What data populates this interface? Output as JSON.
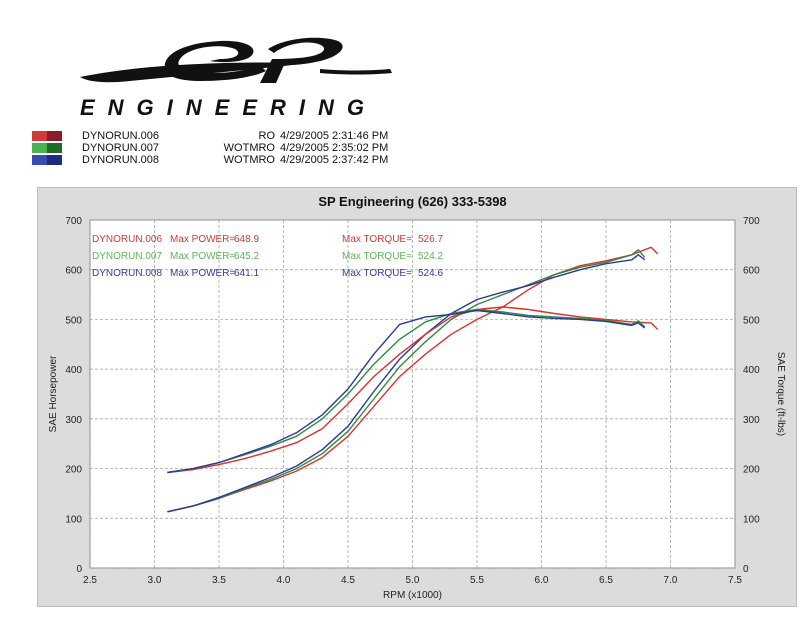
{
  "brand": {
    "initials": "SP",
    "name": "ENGINEERING"
  },
  "runs": [
    {
      "name": "DYNORUN.006",
      "mode": "RO",
      "date": "4/29/2005 2:31:46 PM",
      "color": "#d23a3a"
    },
    {
      "name": "DYNORUN.007",
      "mode": "WOTMRO",
      "date": "4/29/2005 2:35:02 PM",
      "color": "#2e8b3a"
    },
    {
      "name": "DYNORUN.008",
      "mode": "WOTMRO",
      "date": "4/29/2005 2:37:42 PM",
      "color": "#2a3a9c"
    }
  ],
  "chart_data": {
    "type": "line",
    "title": "SP Engineering (626) 333-5398",
    "xlabel": "RPM (x1000)",
    "ylabel": "SAE Horsepower",
    "y2label": "SAE Torque (ft-lbs)",
    "xlim": [
      2.5,
      7.5
    ],
    "ylim": [
      0,
      700
    ],
    "y2lim": [
      0,
      700
    ],
    "xticks": [
      "2.5",
      "3.0",
      "3.5",
      "4.0",
      "4.5",
      "5.0",
      "5.5",
      "6.0",
      "6.5",
      "7.0",
      "7.5"
    ],
    "yticks": [
      "0",
      "100",
      "200",
      "300",
      "400",
      "500",
      "600",
      "700"
    ],
    "grid": true,
    "annotations": [
      {
        "run": "DYNORUN.006",
        "power_label": "Max POWER=",
        "power": "648.9",
        "torque_label": "Max TORQUE=",
        "torque": "526.7",
        "color": "#d23a3a"
      },
      {
        "run": "DYNORUN.007",
        "power_label": "Max POWER=",
        "power": "645.2",
        "torque_label": "Max TORQUE=",
        "torque": "524.2",
        "color": "#5cb85c"
      },
      {
        "run": "DYNORUN.008",
        "power_label": "Max POWER=",
        "power": "641.1",
        "torque_label": "Max TORQUE=",
        "torque": "524.6",
        "color": "#3a3aa0"
      }
    ],
    "series": [
      {
        "run": "DYNORUN.006",
        "kind": "power",
        "color": "#e03030",
        "x": [
          3.1,
          3.3,
          3.5,
          3.7,
          3.9,
          4.1,
          4.3,
          4.5,
          4.7,
          4.9,
          5.1,
          5.3,
          5.5,
          5.7,
          5.9,
          6.1,
          6.3,
          6.5,
          6.7,
          6.85,
          6.9
        ],
        "y": [
          113,
          125,
          140,
          158,
          175,
          195,
          222,
          265,
          325,
          385,
          430,
          470,
          500,
          525,
          560,
          590,
          608,
          618,
          630,
          645,
          632
        ]
      },
      {
        "run": "DYNORUN.007",
        "kind": "power",
        "color": "#2e8b3a",
        "x": [
          3.1,
          3.3,
          3.5,
          3.7,
          3.9,
          4.1,
          4.3,
          4.5,
          4.7,
          4.9,
          5.1,
          5.3,
          5.5,
          5.7,
          5.9,
          6.1,
          6.3,
          6.5,
          6.7,
          6.75,
          6.8
        ],
        "y": [
          113,
          125,
          140,
          160,
          178,
          200,
          230,
          275,
          340,
          405,
          455,
          500,
          530,
          550,
          570,
          590,
          605,
          615,
          630,
          640,
          625
        ]
      },
      {
        "run": "DYNORUN.008",
        "kind": "power",
        "color": "#2a3a9c",
        "x": [
          3.1,
          3.3,
          3.5,
          3.7,
          3.9,
          4.1,
          4.3,
          4.5,
          4.7,
          4.9,
          5.1,
          5.3,
          5.5,
          5.7,
          5.9,
          6.1,
          6.3,
          6.5,
          6.7,
          6.75,
          6.8
        ],
        "y": [
          113,
          125,
          142,
          162,
          182,
          205,
          238,
          285,
          355,
          420,
          470,
          512,
          540,
          555,
          568,
          585,
          600,
          612,
          620,
          630,
          620
        ]
      },
      {
        "run": "DYNORUN.006",
        "kind": "torque",
        "color": "#e03030",
        "x": [
          3.1,
          3.3,
          3.5,
          3.7,
          3.9,
          4.1,
          4.3,
          4.5,
          4.7,
          4.9,
          5.1,
          5.3,
          5.5,
          5.7,
          5.9,
          6.1,
          6.3,
          6.5,
          6.7,
          6.85,
          6.9
        ],
        "y": [
          192,
          198,
          208,
          220,
          235,
          252,
          280,
          330,
          385,
          430,
          470,
          505,
          520,
          525,
          520,
          512,
          505,
          500,
          495,
          493,
          480
        ]
      },
      {
        "run": "DYNORUN.007",
        "kind": "torque",
        "color": "#2e8b3a",
        "x": [
          3.1,
          3.3,
          3.5,
          3.7,
          3.9,
          4.1,
          4.3,
          4.5,
          4.7,
          4.9,
          5.1,
          5.3,
          5.5,
          5.7,
          5.9,
          6.1,
          6.3,
          6.5,
          6.7,
          6.75,
          6.8
        ],
        "y": [
          192,
          200,
          212,
          228,
          245,
          265,
          300,
          350,
          410,
          460,
          495,
          512,
          520,
          515,
          508,
          505,
          502,
          498,
          490,
          497,
          485
        ]
      },
      {
        "run": "DYNORUN.008",
        "kind": "torque",
        "color": "#2a3a9c",
        "x": [
          3.1,
          3.3,
          3.5,
          3.7,
          3.9,
          4.1,
          4.3,
          4.5,
          4.7,
          4.9,
          5.1,
          5.3,
          5.5,
          5.7,
          5.9,
          6.1,
          6.3,
          6.5,
          6.7,
          6.75,
          6.8
        ],
        "y": [
          192,
          200,
          212,
          230,
          248,
          272,
          308,
          360,
          430,
          490,
          505,
          510,
          518,
          512,
          505,
          502,
          500,
          496,
          488,
          493,
          483
        ]
      }
    ]
  }
}
